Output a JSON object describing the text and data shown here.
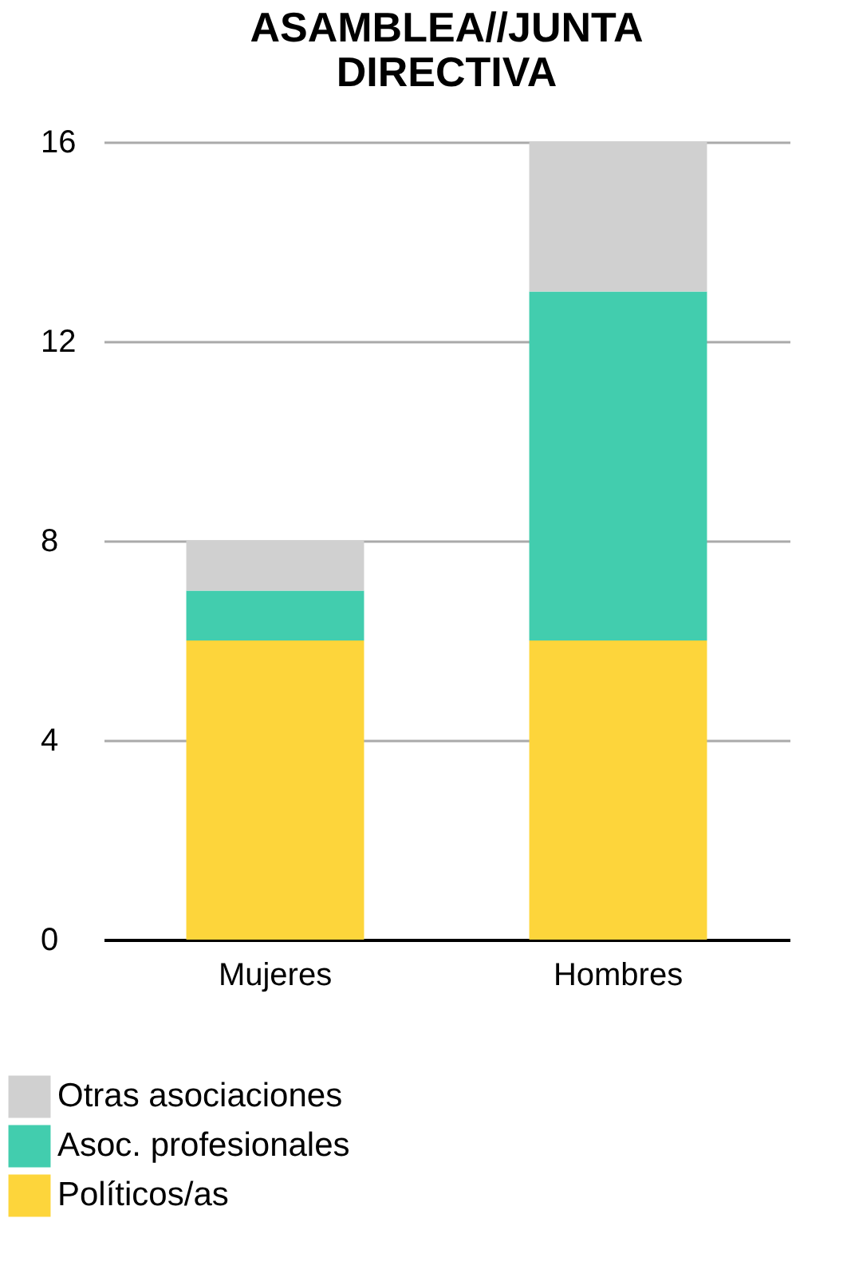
{
  "chart_data": {
    "type": "bar",
    "title": "ASAMBLEA//JUNTA DIRECTIVA",
    "categories": [
      "Mujeres",
      "Hombres"
    ],
    "stacked": true,
    "series": [
      {
        "name": "Políticos/as",
        "color": "#fdd53b",
        "values": [
          6,
          6
        ]
      },
      {
        "name": "Asoc. profesionales",
        "color": "#42cdae",
        "values": [
          1,
          7
        ]
      },
      {
        "name": "Otras asociaciones",
        "color": "#d0d0d0",
        "values": [
          1,
          3
        ]
      }
    ],
    "ylim": [
      0,
      16
    ],
    "yticks": [
      0,
      4,
      8,
      12,
      16
    ],
    "grid": "y",
    "legend": "bottom left"
  }
}
